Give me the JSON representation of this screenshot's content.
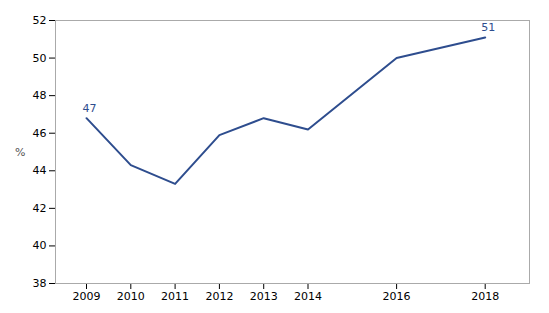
{
  "chart_data": {
    "type": "line",
    "x": [
      2009,
      2010,
      2011,
      2012,
      2013,
      2014,
      2016,
      2018
    ],
    "values": [
      46.8,
      44.3,
      43.3,
      45.9,
      46.8,
      46.2,
      50.0,
      51.1
    ],
    "color": "#2E4D8E",
    "ylabel": "%",
    "xlim": [
      2008.3,
      2019.0
    ],
    "xticks": [
      2009,
      2010,
      2011,
      2012,
      2013,
      2014,
      2016,
      2018
    ],
    "ylim": [
      38,
      52
    ],
    "yticks": [
      38,
      40,
      42,
      44,
      46,
      48,
      50,
      52
    ],
    "grid": false,
    "annotations": [
      {
        "x": 2009,
        "y": 46.8,
        "label": "47"
      },
      {
        "x": 2018,
        "y": 51.1,
        "label": "51"
      }
    ]
  }
}
